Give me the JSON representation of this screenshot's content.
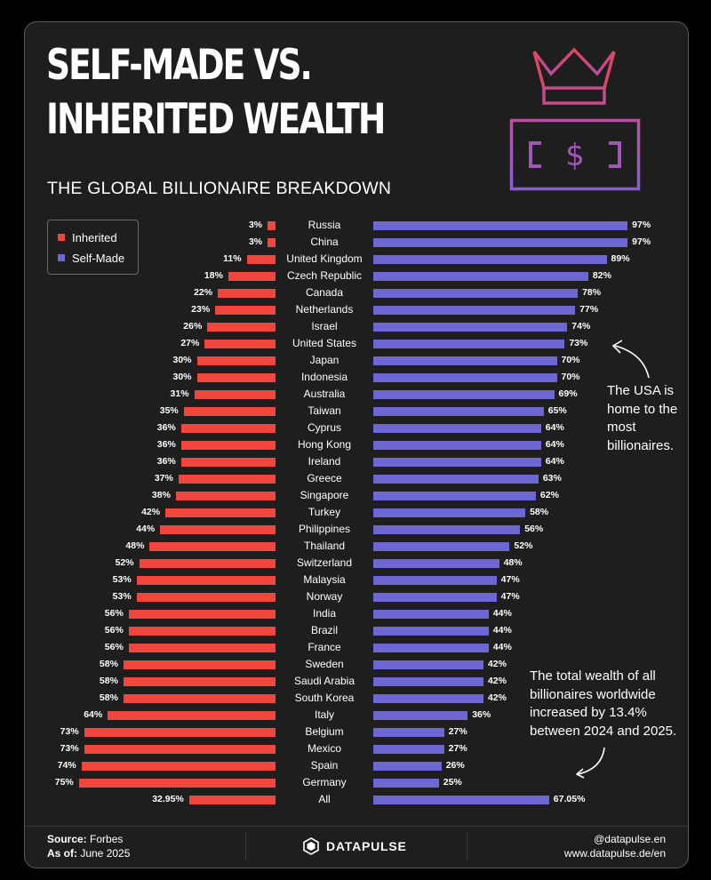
{
  "title_line1": "SELF-MADE VS.",
  "title_line2": "INHERITED WEALTH",
  "subtitle": "THE GLOBAL BILLIONAIRE BREAKDOWN",
  "colors": {
    "inherited": "#f0463c",
    "self_made": "#6d67d4",
    "card_background": "#1e1e1e",
    "crown_gradient": [
      "#e0455a",
      "#9a5fd0"
    ]
  },
  "icons": [
    "crown-icon",
    "dollar-banknote-icon",
    "curved-arrow-icon",
    "datapulse-logo-icon"
  ],
  "chart_data": {
    "type": "bar",
    "orientation": "diverging-horizontal",
    "categories": [
      "Russia",
      "China",
      "United Kingdom",
      "Czech Republic",
      "Canada",
      "Netherlands",
      "Israel",
      "United States",
      "Japan",
      "Indonesia",
      "Australia",
      "Taiwan",
      "Cyprus",
      "Hong Kong",
      "Ireland",
      "Greece",
      "Singapore",
      "Turkey",
      "Philippines",
      "Thailand",
      "Switzerland",
      "Malaysia",
      "Norway",
      "India",
      "Brazil",
      "France",
      "Sweden",
      "Saudi Arabia",
      "South Korea",
      "Italy",
      "Belgium",
      "Mexico",
      "Spain",
      "Germany",
      "All"
    ],
    "series": [
      {
        "name": "Inherited",
        "values": [
          3,
          3,
          11,
          18,
          22,
          23,
          26,
          27,
          30,
          30,
          31,
          35,
          36,
          36,
          36,
          37,
          38,
          42,
          44,
          48,
          52,
          53,
          53,
          56,
          56,
          56,
          58,
          58,
          58,
          64,
          73,
          73,
          74,
          75,
          32.95
        ],
        "labels": [
          "3%",
          "3%",
          "11%",
          "18%",
          "22%",
          "23%",
          "26%",
          "27%",
          "30%",
          "30%",
          "31%",
          "35%",
          "36%",
          "36%",
          "36%",
          "37%",
          "38%",
          "42%",
          "44%",
          "48%",
          "52%",
          "53%",
          "53%",
          "56%",
          "56%",
          "56%",
          "58%",
          "58%",
          "58%",
          "64%",
          "73%",
          "73%",
          "74%",
          "75%",
          "32.95%"
        ]
      },
      {
        "name": "Self-Made",
        "values": [
          97,
          97,
          89,
          82,
          78,
          77,
          74,
          73,
          70,
          70,
          69,
          65,
          64,
          64,
          64,
          63,
          62,
          58,
          56,
          52,
          48,
          47,
          47,
          44,
          44,
          44,
          42,
          42,
          42,
          36,
          27,
          27,
          26,
          25,
          67.05
        ],
        "labels": [
          "97%",
          "97%",
          "89%",
          "82%",
          "78%",
          "77%",
          "74%",
          "73%",
          "70%",
          "70%",
          "69%",
          "65%",
          "64%",
          "64%",
          "64%",
          "63%",
          "62%",
          "58%",
          "56%",
          "52%",
          "48%",
          "47%",
          "47%",
          "44%",
          "44%",
          "44%",
          "42%",
          "42%",
          "42%",
          "36%",
          "27%",
          "27%",
          "26%",
          "25%",
          "67.05%"
        ]
      }
    ],
    "xlim": [
      0,
      100
    ],
    "legend_position": "top-left",
    "grid": false
  },
  "annotations": {
    "usa_note": "The USA is home to the most billionaires.",
    "wealth_note": "The total wealth of all billionaires worldwide increased by 13.4% between 2024 and 2025."
  },
  "footer": {
    "source_label": "Source:",
    "source_value": " Forbes",
    "asof_label": "As of:",
    "asof_value": " June 2025",
    "brand": "DATAPULSE",
    "handle": "@datapulse.en",
    "website": "www.datapulse.de/en"
  }
}
